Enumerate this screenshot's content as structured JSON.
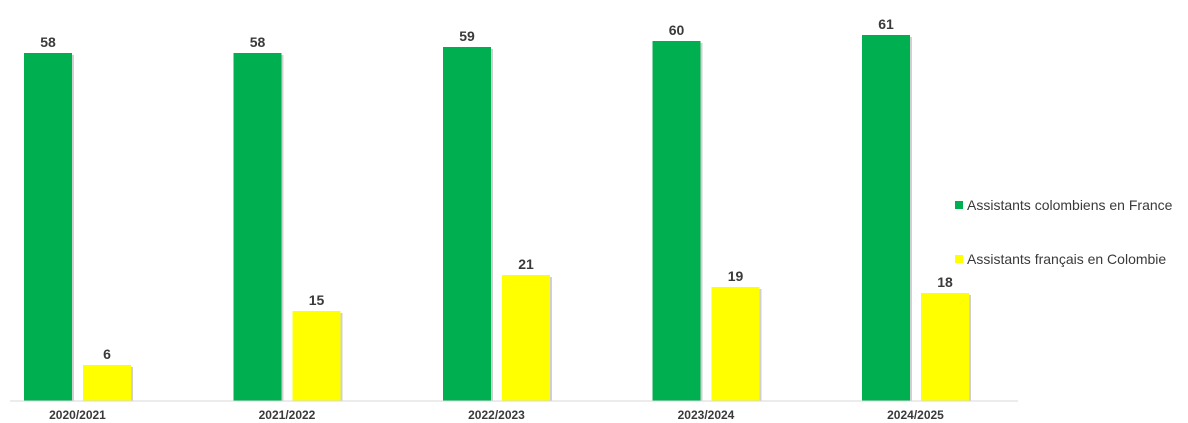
{
  "chart_data": {
    "type": "bar",
    "title": "",
    "xlabel": "",
    "ylabel": "",
    "categories": [
      "2020/2021",
      "2021/2022",
      "2022/2023",
      "2023/2024",
      "2024/2025"
    ],
    "series": [
      {
        "name": "Assistants colombiens en France",
        "color": "#00b050",
        "values": [
          58,
          58,
          59,
          60,
          61
        ]
      },
      {
        "name": "Assistants français en Colombie",
        "color": "#ffff00",
        "values": [
          6,
          15,
          21,
          19,
          18
        ]
      }
    ],
    "ylim": [
      0,
      65
    ],
    "grid": false,
    "legend_position": "right",
    "data_labels": true
  }
}
